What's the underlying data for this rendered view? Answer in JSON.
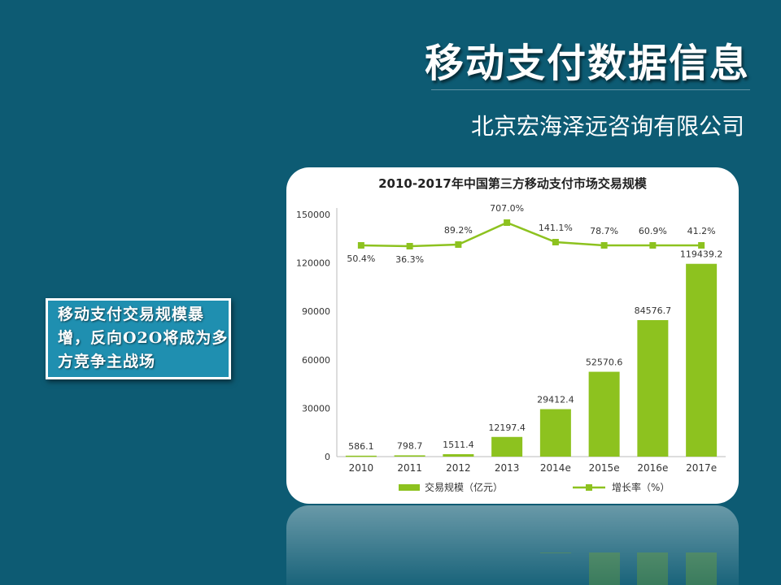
{
  "slide": {
    "title": "移动支付数据信息",
    "subtitle": "北京宏海泽远咨询有限公司",
    "callout": "移动支付交易规模暴增，反向O2O将成为多方竞争主战场"
  },
  "colors": {
    "background": "#0d5b73",
    "bar": "#8dc21f",
    "line": "#8dc21f",
    "callout": "#1f8fb0"
  },
  "chart_data": {
    "type": "bar",
    "title": "2010-2017年中国第三方移动支付市场交易规模",
    "categories": [
      "2010",
      "2011",
      "2012",
      "2013",
      "2014e",
      "2015e",
      "2016e",
      "2017e"
    ],
    "series": [
      {
        "name": "交易规模（亿元）",
        "type": "bar",
        "values": [
          586.1,
          798.7,
          1511.4,
          12197.4,
          29412.4,
          52570.6,
          84576.7,
          119439.2
        ],
        "labels": [
          "586.1",
          "798.7",
          "1511.4",
          "12197.4",
          "29412.4",
          "52570.6",
          "84576.7",
          "119439.2"
        ]
      },
      {
        "name": "增长率（%）",
        "type": "line",
        "values": [
          50.4,
          36.3,
          89.2,
          707.0,
          141.1,
          78.7,
          60.9,
          41.2
        ],
        "labels": [
          "50.4%",
          "36.3%",
          "89.2%",
          "707.0%",
          "141.1%",
          "78.7%",
          "60.9%",
          "41.2%"
        ]
      }
    ],
    "yticks": [
      "150000",
      "120000",
      "90000",
      "60000",
      "30000",
      "0"
    ],
    "ylim": [
      0,
      150000
    ],
    "grid": false,
    "legend_position": "bottom"
  }
}
